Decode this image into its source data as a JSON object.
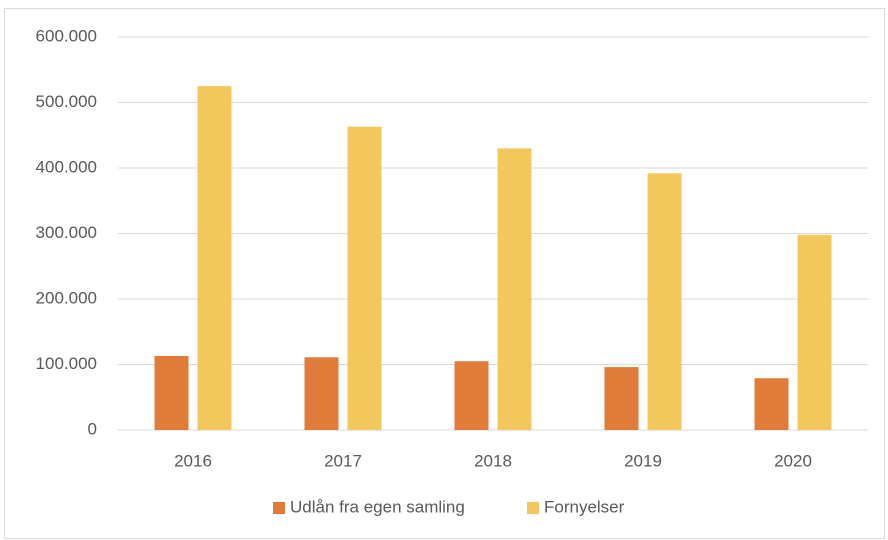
{
  "chart_data": {
    "type": "bar",
    "categories": [
      "2016",
      "2017",
      "2018",
      "2019",
      "2020"
    ],
    "series": [
      {
        "name": "Udlån fra egen samling",
        "color": "#e07b39",
        "values": [
          113000,
          111000,
          105000,
          96000,
          79000
        ]
      },
      {
        "name": "Fornyelser",
        "color": "#f2c75c",
        "values": [
          525000,
          463000,
          430000,
          392000,
          298000
        ]
      }
    ],
    "ylim": [
      0,
      600000
    ],
    "yticks": [
      0,
      {
        "value": 100000,
        "label": "100.000"
      },
      {
        "value": 200000,
        "label": "200.000"
      },
      {
        "value": 300000,
        "label": "300.000"
      },
      {
        "value": 400000,
        "label": "400.000"
      },
      {
        "value": 500000,
        "label": "500.000"
      },
      {
        "value": 600000,
        "label": "600.000"
      }
    ],
    "grid": true,
    "legend": "bottom"
  }
}
